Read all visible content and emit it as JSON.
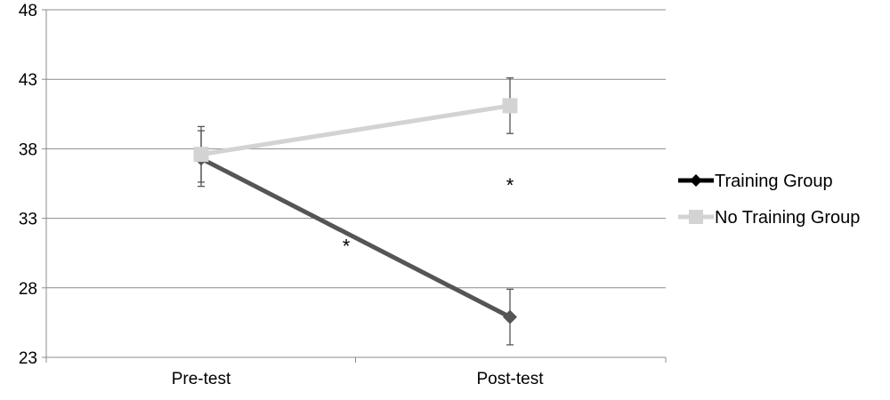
{
  "chart_data": {
    "type": "line",
    "categories": [
      "Pre-test",
      "Post-test"
    ],
    "ylim": [
      23,
      48
    ],
    "yticks": [
      "23",
      "28",
      "33",
      "38",
      "43",
      "48"
    ],
    "grid": true,
    "legend_position": "right",
    "series": [
      {
        "name": "Training Group",
        "values": [
          37.3,
          25.9
        ],
        "error": [
          2.0,
          2.0
        ],
        "color": "#555555",
        "marker": "diamond"
      },
      {
        "name": "No Training Group",
        "values": [
          37.6,
          41.1
        ],
        "error": [
          2.0,
          2.0
        ],
        "color": "#d3d3d3",
        "marker": "square"
      }
    ],
    "annotations": [
      {
        "text": "*",
        "category_position": 0.47,
        "y": 31.4
      },
      {
        "text": "*",
        "category_position": 1.0,
        "y": 35.8
      }
    ]
  }
}
